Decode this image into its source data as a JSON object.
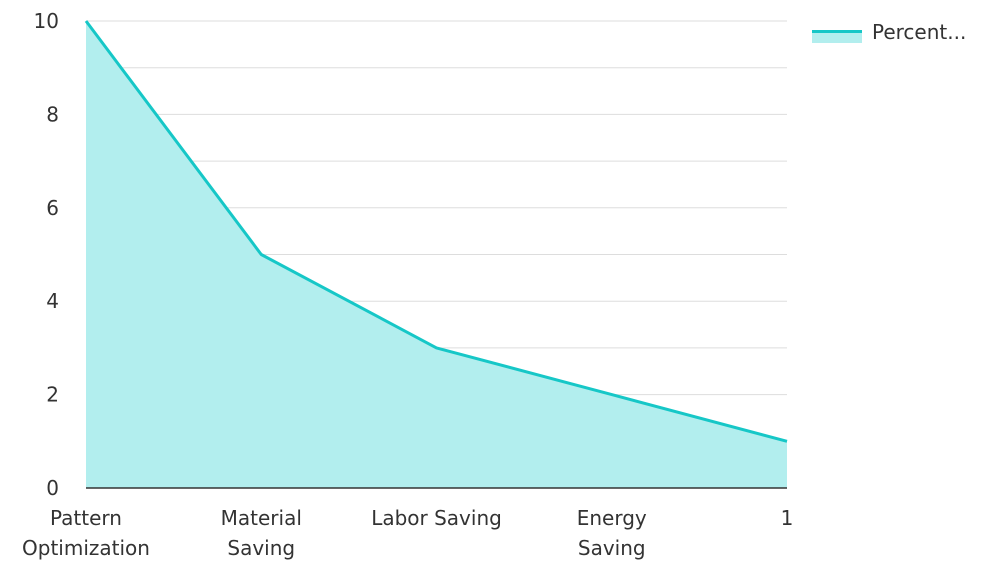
{
  "colors": {
    "line": "#16c7c7",
    "area": "#b2eeee",
    "grid": "#dddddd",
    "axis": "#333333",
    "text": "#333333"
  },
  "legend": {
    "label": "Percent..."
  },
  "chart_data": {
    "type": "area",
    "categories": [
      [
        "Pattern",
        "Optimization"
      ],
      [
        "Material",
        "Saving"
      ],
      [
        "Labor Saving"
      ],
      [
        "Energy",
        "Saving"
      ],
      [
        "1"
      ]
    ],
    "series": [
      {
        "name": "Percent...",
        "values": [
          10,
          5,
          3,
          2,
          1
        ]
      }
    ],
    "yticks": [
      "0",
      "2",
      "4",
      "6",
      "8",
      "10"
    ],
    "ylim": [
      0,
      10
    ],
    "grid": true,
    "legend_position": "top-right"
  }
}
